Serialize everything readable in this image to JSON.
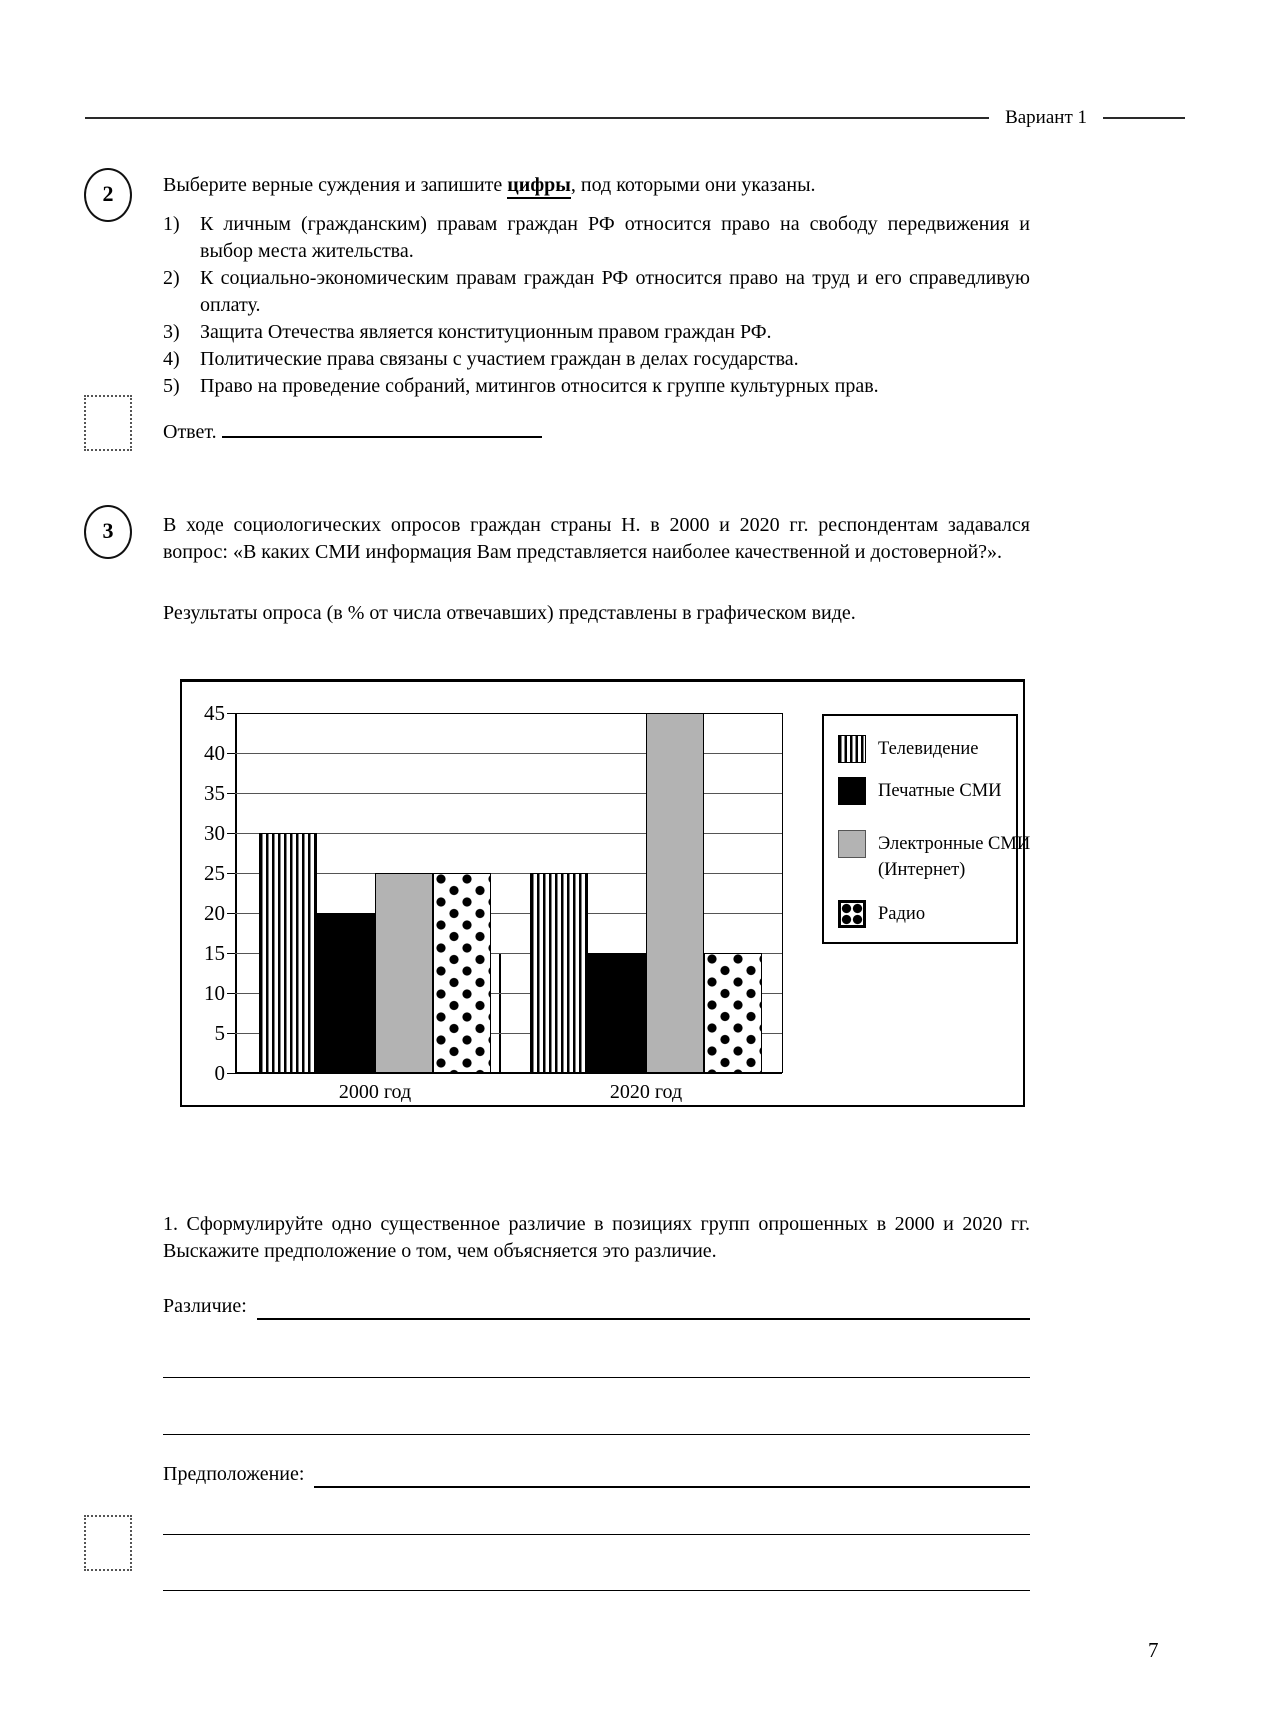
{
  "page": {
    "variant": "Вариант 1",
    "number": "7"
  },
  "q2": {
    "badge": "2",
    "intro_pre": "Выберите верные суждения и запишите ",
    "intro_bold": "цифры",
    "intro_post": ", под которыми они указаны.",
    "items": [
      {
        "num": "1)",
        "text": "К личным (гражданским) правам граждан РФ относится право на свободу передвижения и выбор места жительства."
      },
      {
        "num": "2)",
        "text": "К социально-экономическим правам граждан РФ относится право на труд и его справедливую оплату."
      },
      {
        "num": "3)",
        "text": "Защита Отечества является конституционным правом граждан РФ."
      },
      {
        "num": "4)",
        "text": "Политические права связаны с участием граждан в делах государства."
      },
      {
        "num": "5)",
        "text": "Право на проведение собраний, митингов относится к группе культурных прав."
      }
    ],
    "answer_label": "Ответ."
  },
  "q3": {
    "badge": "3",
    "intro": "В ходе социологических опросов граждан страны Н. в 2000 и 2020 гг. респондентам задавался вопрос: «В каких СМИ информация Вам представляется наиболее качественной и достоверной?».",
    "results_note": "Результаты опроса (в % от числа отвечавших) представлены в графическом виде.",
    "task1": "1. Сформулируйте одно существенное различие в позициях групп опрошенных в 2000 и 2020 гг. Выскажите предположение о том, чем объясняется это различие.",
    "difference_label": "Различие:",
    "assumption_label": "Предположение:"
  },
  "chart_data": {
    "type": "bar",
    "categories": [
      "2000 год",
      "2020 год"
    ],
    "series": [
      {
        "name": "Телевидение",
        "pattern": "vertical-stripes",
        "values": [
          30,
          25
        ]
      },
      {
        "name": "Печатные СМИ",
        "pattern": "solid-black",
        "values": [
          20,
          15
        ]
      },
      {
        "name": "Электронные СМИ (Интернет)",
        "pattern": "solid-gray",
        "values": [
          25,
          45
        ]
      },
      {
        "name": "Радио",
        "pattern": "dots",
        "values": [
          25,
          15
        ]
      }
    ],
    "ylabel": "",
    "xlabel": "",
    "ylim": [
      0,
      45
    ],
    "yticks": [
      45,
      40,
      35,
      30,
      25,
      20,
      15,
      10,
      5,
      0
    ],
    "grid": true,
    "legend_position": "right-inside",
    "legend": {
      "tv": "Телевидение",
      "print": "Печатные СМИ",
      "electronic_line1": "Электронные СМИ",
      "electronic_line2": "(Интернет)",
      "radio": "Радио"
    },
    "colors": {
      "gray_bar": "#b3b3b3",
      "black_bar": "#000000"
    }
  }
}
